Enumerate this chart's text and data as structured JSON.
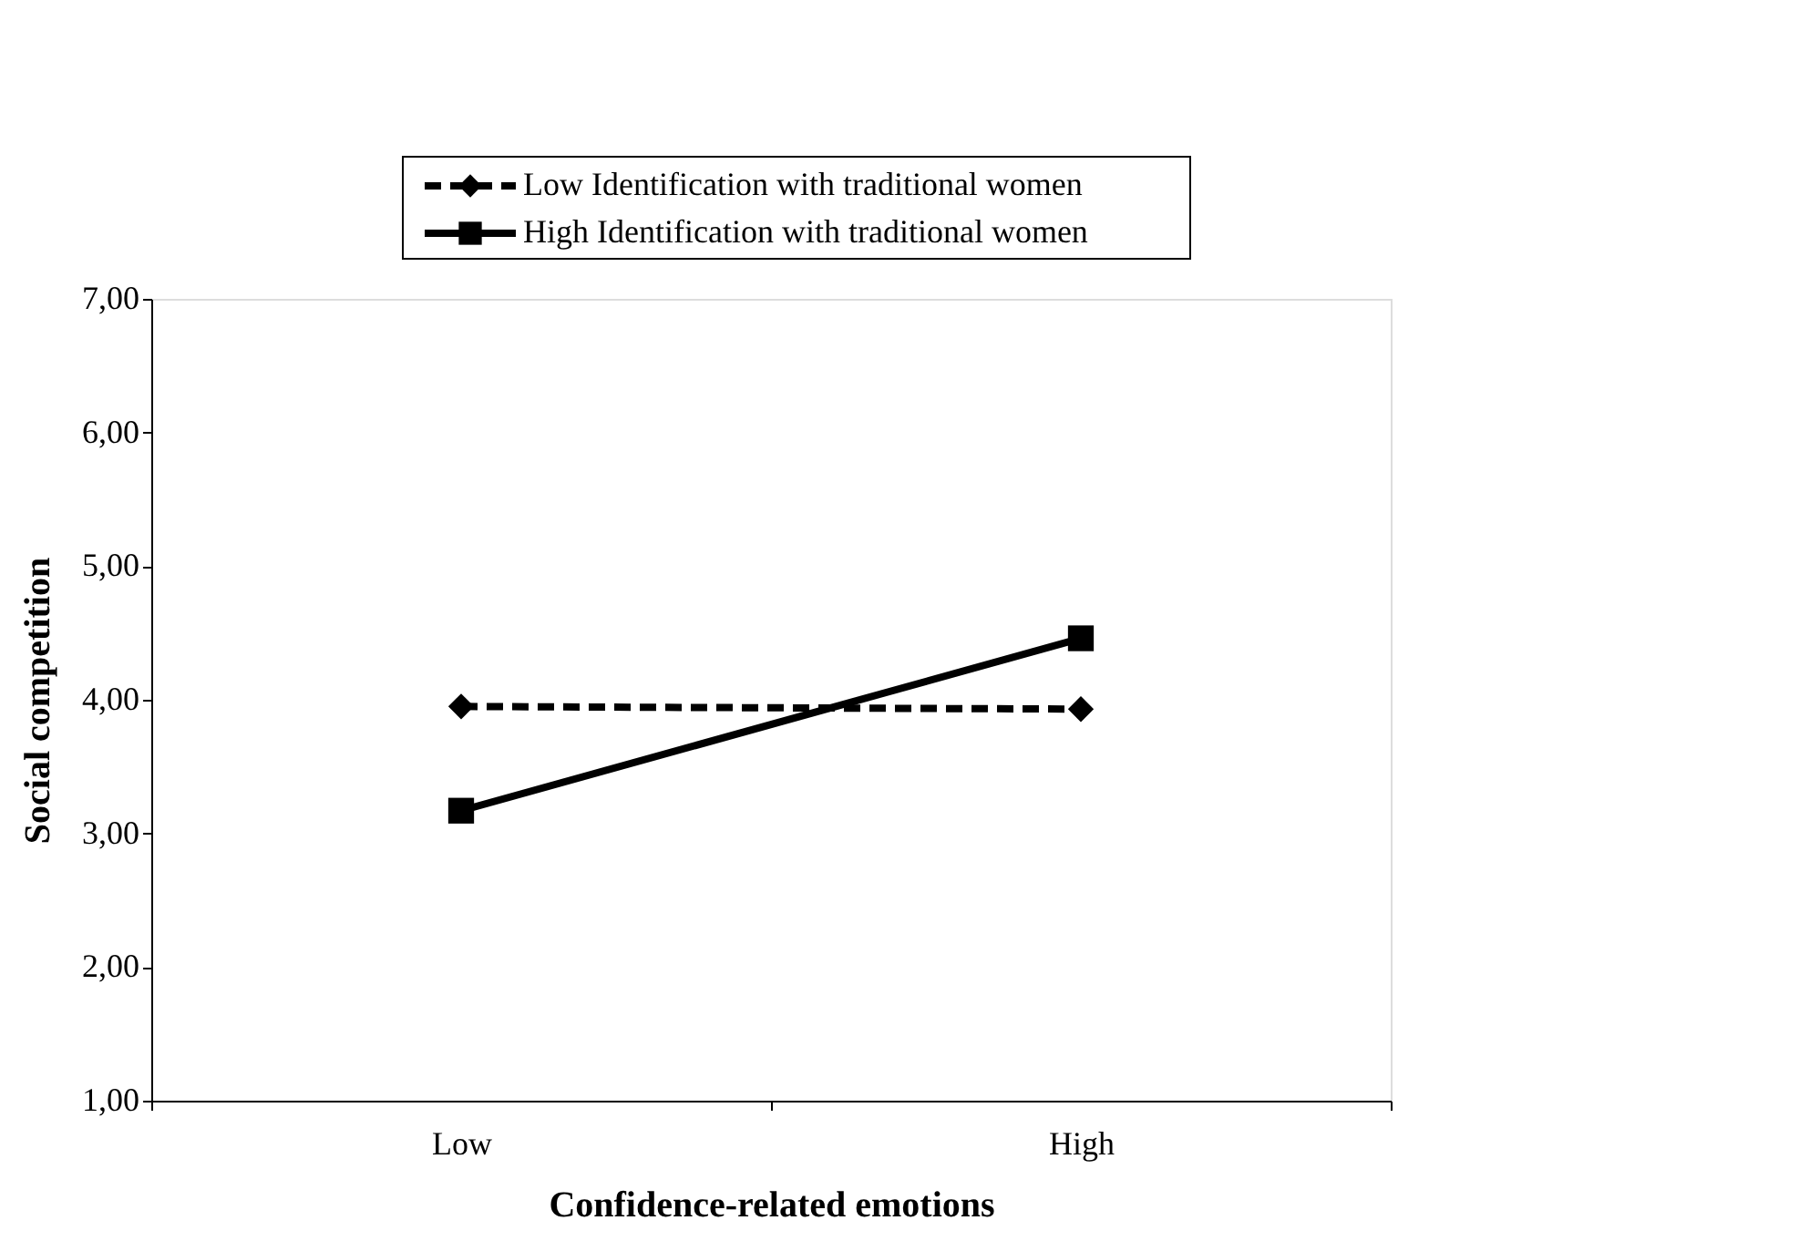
{
  "chart_data": {
    "type": "line",
    "xlabel": "Confidence-related emotions",
    "ylabel": "Social competition",
    "categories": [
      "Low",
      "High"
    ],
    "series": [
      {
        "name": "Low Identification with traditional women",
        "color": "#000000",
        "values": [
          3.95,
          3.93
        ],
        "marker": "diamond",
        "line_style": "dashed"
      },
      {
        "name": "High Identification with traditional women",
        "color": "#000000",
        "values": [
          3.17,
          4.46
        ],
        "marker": "square",
        "line_style": "solid"
      }
    ],
    "ylim": [
      1,
      7
    ],
    "yticks": [
      {
        "value": 1,
        "label": "1,00"
      },
      {
        "value": 2,
        "label": "2,00"
      },
      {
        "value": 3,
        "label": "3,00"
      },
      {
        "value": 4,
        "label": "4,00"
      },
      {
        "value": 5,
        "label": "5,00"
      },
      {
        "value": 6,
        "label": "6,00"
      },
      {
        "value": 7,
        "label": "7,00"
      }
    ],
    "grid": false,
    "legend": "top"
  }
}
